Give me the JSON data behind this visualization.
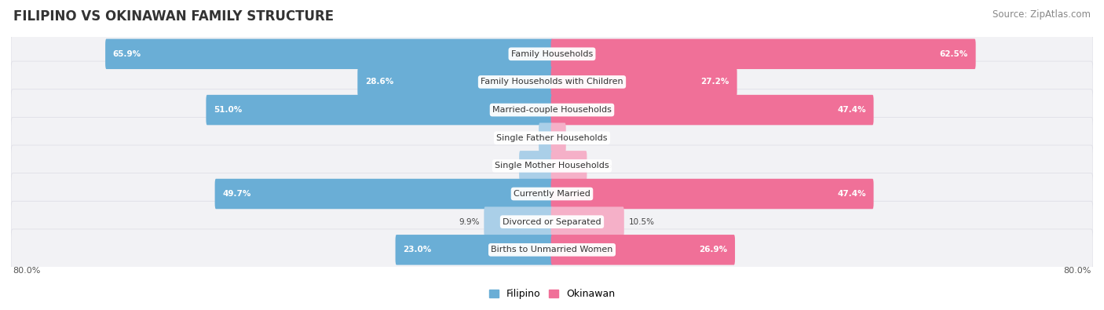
{
  "title": "FILIPINO VS OKINAWAN FAMILY STRUCTURE",
  "source": "Source: ZipAtlas.com",
  "categories": [
    "Family Households",
    "Family Households with Children",
    "Married-couple Households",
    "Single Father Households",
    "Single Mother Households",
    "Currently Married",
    "Divorced or Separated",
    "Births to Unmarried Women"
  ],
  "filipino_values": [
    65.9,
    28.6,
    51.0,
    1.8,
    4.7,
    49.7,
    9.9,
    23.0
  ],
  "okinawan_values": [
    62.5,
    27.2,
    47.4,
    1.9,
    5.0,
    47.4,
    10.5,
    26.9
  ],
  "filipino_color_strong": "#6aaed6",
  "filipino_color_light": "#aacfe8",
  "okinawan_color_strong": "#f07098",
  "okinawan_color_light": "#f5b0c8",
  "background_row_color": "#f2f2f5",
  "background_row_border": "#dcdce4",
  "x_max": 80.0,
  "threshold_strong": 20.0,
  "title_fontsize": 12,
  "source_fontsize": 8.5,
  "label_fontsize": 8,
  "value_fontsize": 7.5,
  "legend_fontsize": 9,
  "axis_label_fontsize": 8
}
